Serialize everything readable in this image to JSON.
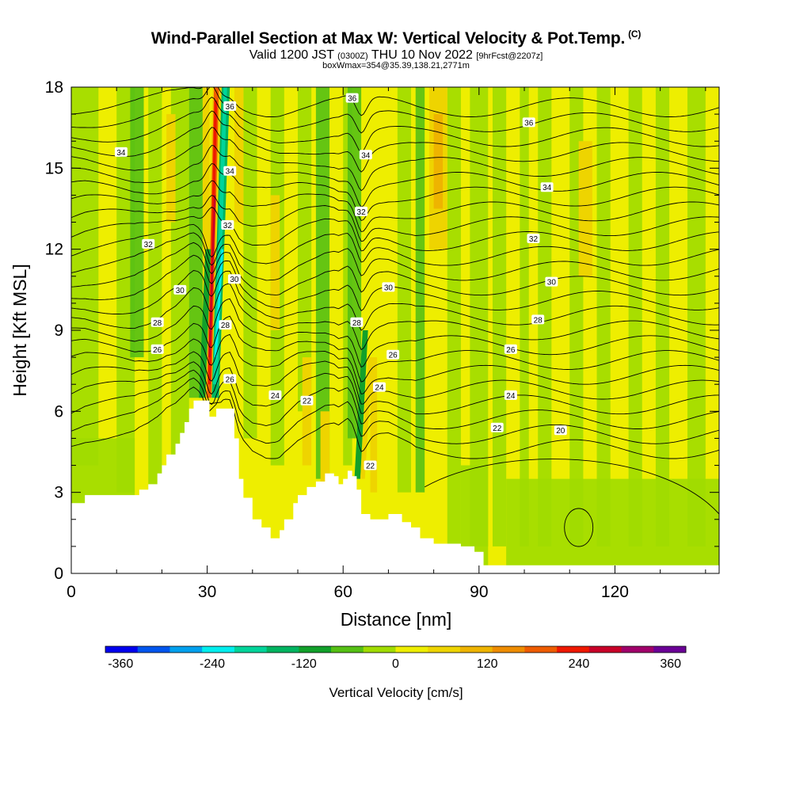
{
  "header": {
    "title": "Wind-Parallel Section at Max W: Vertical Velocity & Pot.Temp.",
    "copyright": "(C)",
    "valid_prefix": "Valid 1200 JST",
    "utc": "(0300Z)",
    "date": "THU 10 Nov 2022",
    "forecast": "[9hrFcst@2207z]",
    "box_info": "boxWmax=354@35.39,138.21,2771m"
  },
  "chart_data": {
    "type": "heatmap",
    "xlabel": "Distance [nm]",
    "ylabel": "Height [Kft MSL]",
    "xlim": [
      0,
      143
    ],
    "ylim": [
      0,
      18
    ],
    "x_ticks": [
      "0",
      "30",
      "60",
      "90",
      "120"
    ],
    "y_ticks": [
      "0",
      "3",
      "6",
      "9",
      "12",
      "15",
      "18"
    ],
    "colorbar": {
      "title": "Vertical Velocity [cm/s]",
      "tick_labels": [
        "-360",
        "-240",
        "-120",
        "0",
        "120",
        "240",
        "360"
      ],
      "tick_values": [
        -360,
        -240,
        -120,
        0,
        120,
        240,
        360
      ],
      "range": [
        -380,
        380
      ],
      "colors": [
        "#0000ee",
        "#0055ee",
        "#00a0ee",
        "#00eeee",
        "#00d49a",
        "#00b460",
        "#12a02a",
        "#55c014",
        "#a0dc00",
        "#eeee00",
        "#eed400",
        "#eeb400",
        "#ee8c00",
        "#ee5c00",
        "#ee1800",
        "#c80028",
        "#a0006a",
        "#6a0096"
      ]
    },
    "terrain_profile": [
      {
        "x": 0,
        "height": 2.6
      },
      {
        "x": 3,
        "height": 2.9
      },
      {
        "x": 14,
        "height": 2.9
      },
      {
        "x": 15,
        "height": 3.1
      },
      {
        "x": 17,
        "height": 3.3
      },
      {
        "x": 19,
        "height": 3.7
      },
      {
        "x": 20,
        "height": 4.0
      },
      {
        "x": 21,
        "height": 4.4
      },
      {
        "x": 23,
        "height": 4.8
      },
      {
        "x": 24,
        "height": 5.2
      },
      {
        "x": 25,
        "height": 5.6
      },
      {
        "x": 26,
        "height": 6.1
      },
      {
        "x": 27,
        "height": 6.4
      },
      {
        "x": 30.5,
        "height": 5.8
      },
      {
        "x": 32,
        "height": 6.1
      },
      {
        "x": 35,
        "height": 6.1
      },
      {
        "x": 36,
        "height": 5.0
      },
      {
        "x": 37,
        "height": 3.5
      },
      {
        "x": 38,
        "height": 2.8
      },
      {
        "x": 40,
        "height": 2.0
      },
      {
        "x": 42,
        "height": 1.7
      },
      {
        "x": 44,
        "height": 1.3
      },
      {
        "x": 46,
        "height": 1.6
      },
      {
        "x": 47,
        "height": 2.0
      },
      {
        "x": 49,
        "height": 2.6
      },
      {
        "x": 50,
        "height": 2.9
      },
      {
        "x": 52,
        "height": 3.2
      },
      {
        "x": 54,
        "height": 3.4
      },
      {
        "x": 56,
        "height": 3.7
      },
      {
        "x": 58,
        "height": 3.6
      },
      {
        "x": 59,
        "height": 3.3
      },
      {
        "x": 60,
        "height": 3.5
      },
      {
        "x": 61,
        "height": 3.8
      },
      {
        "x": 62,
        "height": 3.6
      },
      {
        "x": 63,
        "height": 3.1
      },
      {
        "x": 64,
        "height": 2.2
      },
      {
        "x": 66,
        "height": 2.0
      },
      {
        "x": 67,
        "height": 2.0
      },
      {
        "x": 70,
        "height": 2.2
      },
      {
        "x": 73,
        "height": 1.9
      },
      {
        "x": 75,
        "height": 1.7
      },
      {
        "x": 77,
        "height": 1.3
      },
      {
        "x": 80,
        "height": 1.1
      },
      {
        "x": 86,
        "height": 1.0
      },
      {
        "x": 89,
        "height": 0.8
      },
      {
        "x": 91,
        "height": 0.3
      },
      {
        "x": 143,
        "height": 0.3
      }
    ],
    "isentrope_labels": [
      {
        "x": 11,
        "height": 15.6,
        "theta": "34"
      },
      {
        "x": 17,
        "height": 12.2,
        "theta": "32"
      },
      {
        "x": 24,
        "height": 10.5,
        "theta": "30"
      },
      {
        "x": 19,
        "height": 9.3,
        "theta": "28"
      },
      {
        "x": 19,
        "height": 8.3,
        "theta": "26"
      },
      {
        "x": 35,
        "height": 17.3,
        "theta": "36"
      },
      {
        "x": 35,
        "height": 14.9,
        "theta": "34"
      },
      {
        "x": 34.5,
        "height": 12.9,
        "theta": "32"
      },
      {
        "x": 36,
        "height": 10.9,
        "theta": "30"
      },
      {
        "x": 34,
        "height": 9.2,
        "theta": "28"
      },
      {
        "x": 35,
        "height": 7.2,
        "theta": "26"
      },
      {
        "x": 45,
        "height": 6.6,
        "theta": "24"
      },
      {
        "x": 52,
        "height": 6.4,
        "theta": "22"
      },
      {
        "x": 62,
        "height": 17.6,
        "theta": "36"
      },
      {
        "x": 65,
        "height": 15.5,
        "theta": "34"
      },
      {
        "x": 64,
        "height": 13.4,
        "theta": "32"
      },
      {
        "x": 70,
        "height": 10.6,
        "theta": "30"
      },
      {
        "x": 63,
        "height": 9.3,
        "theta": "28"
      },
      {
        "x": 71,
        "height": 8.1,
        "theta": "26"
      },
      {
        "x": 68,
        "height": 6.9,
        "theta": "24"
      },
      {
        "x": 66,
        "height": 4.0,
        "theta": "22"
      },
      {
        "x": 101,
        "height": 16.7,
        "theta": "36"
      },
      {
        "x": 105,
        "height": 14.3,
        "theta": "34"
      },
      {
        "x": 102,
        "height": 12.4,
        "theta": "32"
      },
      {
        "x": 106,
        "height": 10.8,
        "theta": "30"
      },
      {
        "x": 103,
        "height": 9.4,
        "theta": "28"
      },
      {
        "x": 97,
        "height": 8.3,
        "theta": "26"
      },
      {
        "x": 97,
        "height": 6.6,
        "theta": "24"
      },
      {
        "x": 94,
        "height": 5.4,
        "theta": "22"
      },
      {
        "x": 108,
        "height": 5.3,
        "theta": "20"
      }
    ]
  }
}
